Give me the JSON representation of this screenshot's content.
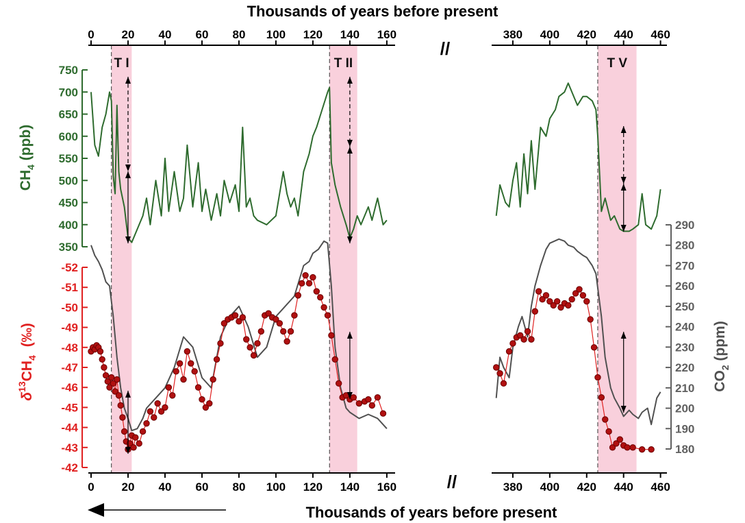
{
  "chart_data": {
    "type": "line",
    "title": "",
    "xlabel": "Thousands of years before present",
    "x_segments": [
      {
        "xlim": [
          0,
          163
        ],
        "ticks": [
          0,
          20,
          40,
          60,
          80,
          100,
          120,
          140,
          160
        ]
      },
      {
        "xlim": [
          370,
          462
        ],
        "ticks": [
          380,
          400,
          420,
          440,
          460
        ]
      }
    ],
    "axis_break": "//",
    "left_axes": [
      {
        "id": "ch4",
        "label": "CH4 (ppb)",
        "ylim": [
          350,
          750
        ],
        "ticks": [
          350,
          400,
          450,
          500,
          550,
          600,
          650,
          700,
          750
        ],
        "color": "#2e6b2e"
      },
      {
        "id": "d13",
        "label": "δ13CH4 (‰)",
        "ylim": [
          -42,
          -52
        ],
        "ticks": [
          -42,
          -43,
          -44,
          -45,
          -46,
          -47,
          -48,
          -49,
          -50,
          -51,
          -52
        ],
        "color": "#e02020",
        "inverted": true
      }
    ],
    "right_axis": {
      "id": "co2",
      "label": "CO2 (ppm)",
      "ylim": [
        180,
        290
      ],
      "ticks": [
        180,
        190,
        200,
        210,
        220,
        230,
        240,
        250,
        260,
        270,
        280,
        290
      ],
      "color": "#606060"
    },
    "terminations": [
      {
        "label": "T I",
        "start": 11,
        "end": 22
      },
      {
        "label": "T II",
        "start": 129,
        "end": 144
      },
      {
        "label": "T V",
        "start": 426,
        "end": 447
      }
    ],
    "series": [
      {
        "axis": "ch4",
        "color": "#2e6b2e",
        "x": [
          0,
          2,
          4,
          6,
          8,
          10,
          11,
          12,
          13,
          14,
          15,
          16,
          18,
          20,
          22,
          25,
          28,
          30,
          32,
          35,
          38,
          40,
          42,
          45,
          48,
          50,
          52,
          55,
          58,
          60,
          62,
          65,
          68,
          70,
          72,
          75,
          78,
          80,
          82,
          84,
          86,
          88,
          90,
          95,
          100,
          104,
          106,
          108,
          110,
          112,
          115,
          118,
          120,
          122,
          125,
          128,
          129,
          130,
          132,
          135,
          138,
          140,
          142,
          144,
          146,
          148,
          150,
          152,
          155,
          158,
          160
        ],
        "values": [
          700,
          580,
          555,
          620,
          650,
          700,
          680,
          510,
          470,
          670,
          520,
          480,
          440,
          370,
          360,
          390,
          420,
          460,
          400,
          500,
          420,
          550,
          430,
          520,
          430,
          460,
          580,
          440,
          540,
          430,
          480,
          410,
          470,
          420,
          500,
          450,
          490,
          430,
          620,
          440,
          460,
          420,
          410,
          400,
          420,
          520,
          470,
          440,
          460,
          420,
          520,
          560,
          600,
          620,
          660,
          700,
          710,
          540,
          490,
          440,
          400,
          370,
          390,
          420,
          400,
          420,
          440,
          410,
          460,
          400,
          410
        ]
      },
      {
        "axis": "ch4",
        "color": "#2e6b2e",
        "x": [
          371,
          373,
          376,
          378,
          380,
          382,
          384,
          386,
          388,
          390,
          392,
          395,
          398,
          400,
          403,
          405,
          408,
          410,
          413,
          415,
          418,
          420,
          423,
          425,
          426,
          428,
          430,
          433,
          435,
          438,
          440,
          443,
          445,
          448,
          450,
          452,
          455,
          458,
          460
        ],
        "values": [
          420,
          490,
          450,
          440,
          500,
          540,
          440,
          560,
          470,
          590,
          480,
          620,
          600,
          640,
          660,
          690,
          700,
          720,
          690,
          670,
          690,
          690,
          680,
          660,
          600,
          430,
          460,
          410,
          420,
          390,
          385,
          385,
          390,
          400,
          470,
          400,
          390,
          420,
          480
        ]
      },
      {
        "axis": "co2",
        "color": "#505050",
        "x": [
          0,
          2,
          4,
          6,
          8,
          10,
          12,
          14,
          16,
          18,
          20,
          22,
          25,
          28,
          30,
          35,
          40,
          45,
          50,
          55,
          60,
          65,
          70,
          75,
          80,
          85,
          90,
          95,
          100,
          105,
          110,
          115,
          118,
          120,
          123,
          126,
          128,
          130,
          132,
          135,
          138,
          140,
          145,
          150,
          155,
          160
        ],
        "values": [
          280,
          275,
          272,
          268,
          262,
          260,
          245,
          225,
          210,
          200,
          195,
          189,
          190,
          195,
          200,
          205,
          210,
          220,
          235,
          230,
          215,
          210,
          235,
          245,
          250,
          240,
          225,
          230,
          245,
          250,
          255,
          270,
          272,
          276,
          278,
          282,
          281,
          260,
          230,
          210,
          200,
          198,
          195,
          197,
          195,
          190
        ]
      },
      {
        "axis": "co2",
        "color": "#505050",
        "x": [
          371,
          373,
          375,
          378,
          380,
          383,
          385,
          388,
          390,
          392,
          395,
          398,
          400,
          405,
          408,
          410,
          413,
          415,
          418,
          420,
          423,
          425,
          428,
          430,
          433,
          435,
          438,
          440,
          443,
          445,
          448,
          450,
          453,
          455,
          458,
          460
        ],
        "values": [
          205,
          225,
          220,
          215,
          230,
          240,
          245,
          235,
          250,
          260,
          270,
          278,
          281,
          283,
          282,
          280,
          279,
          277,
          275,
          274,
          270,
          266,
          245,
          225,
          210,
          205,
          200,
          196,
          199,
          197,
          195,
          198,
          200,
          192,
          205,
          208
        ]
      },
      {
        "axis": "d13",
        "color": "#e02020",
        "markers": true,
        "x": [
          0,
          1,
          2,
          3,
          4,
          5,
          6,
          7,
          8,
          9,
          10,
          11,
          12,
          13,
          14,
          15,
          16,
          17,
          18,
          19,
          20,
          21,
          22,
          23,
          24,
          26,
          28,
          30,
          32,
          34,
          36,
          38,
          40,
          42,
          44,
          46,
          48,
          50,
          52,
          54,
          56,
          58,
          60,
          62,
          64,
          66,
          68,
          70,
          72,
          74,
          76,
          78,
          80,
          82,
          84,
          86,
          88,
          90,
          92,
          94,
          96,
          98,
          100,
          102,
          104,
          106,
          108,
          110,
          112,
          114,
          116,
          118,
          120,
          122,
          124,
          126,
          128,
          130,
          132,
          134,
          136,
          138,
          140,
          142,
          145,
          148,
          150,
          152,
          155,
          158
        ],
        "values": [
          -47.8,
          -48.0,
          -47.9,
          -48.1,
          -48.0,
          -47.8,
          -47.4,
          -47.0,
          -46.6,
          -46.3,
          -46.0,
          -46.5,
          -46.2,
          -45.8,
          -46.4,
          -45.6,
          -45.1,
          -44.5,
          -43.8,
          -43.3,
          -42.9,
          -43.2,
          -43.6,
          -43.0,
          -43.5,
          -43.2,
          -43.8,
          -44.2,
          -44.8,
          -44.5,
          -45.2,
          -44.8,
          -45.0,
          -46.0,
          -45.6,
          -46.8,
          -47.2,
          -46.4,
          -47.8,
          -47.2,
          -46.8,
          -46.0,
          -45.4,
          -45.0,
          -45.2,
          -46.4,
          -47.4,
          -48.2,
          -49.2,
          -49.4,
          -49.5,
          -49.6,
          -49.3,
          -49.5,
          -48.4,
          -48.0,
          -47.6,
          -48.2,
          -48.8,
          -49.6,
          -49.7,
          -49.5,
          -49.4,
          -49.2,
          -48.8,
          -48.3,
          -48.8,
          -49.6,
          -50.6,
          -51.2,
          -51.6,
          -51.2,
          -51.5,
          -50.8,
          -50.5,
          -50.0,
          -49.6,
          -48.6,
          -47.4,
          -46.2,
          -45.5,
          -45.6,
          -45.4,
          -45.5,
          -45.2,
          -45.3,
          -45.4,
          -45.1,
          -45.5,
          -44.7
        ]
      },
      {
        "axis": "d13",
        "color": "#e02020",
        "markers": true,
        "x": [
          371,
          373,
          375,
          378,
          380,
          382,
          384,
          386,
          388,
          390,
          392,
          394,
          396,
          398,
          400,
          402,
          404,
          406,
          408,
          410,
          412,
          414,
          416,
          418,
          420,
          422,
          424,
          426,
          428,
          430,
          432,
          434,
          436,
          438,
          440,
          442,
          445,
          450,
          455
        ],
        "values": [
          -47.0,
          -46.7,
          -46.2,
          -47.8,
          -48.2,
          -48.5,
          -48.6,
          -48.4,
          -48.8,
          -48.4,
          -49.8,
          -50.8,
          -50.4,
          -50.6,
          -50.3,
          -50.1,
          -50.3,
          -50.0,
          -50.2,
          -50.1,
          -50.4,
          -50.7,
          -50.9,
          -50.6,
          -50.3,
          -49.4,
          -48.0,
          -46.5,
          -45.5,
          -44.4,
          -43.8,
          -43.0,
          -43.2,
          -43.4,
          -43.1,
          -43.0,
          -43.0,
          -42.9,
          -42.9
        ]
      }
    ]
  },
  "ui": {
    "title_top": "Thousands of years before present",
    "title_bottom": "Thousands of years before present",
    "break_symbol": "//",
    "ch4_label_main": "CH",
    "ch4_label_sub": "4",
    "ch4_label_unit": " (ppb)",
    "d13_label_delta": "δ",
    "d13_label_sup": "13",
    "d13_label_main": "CH",
    "d13_label_sub": "4",
    "d13_label_unit": "(‰)",
    "co2_label_main": "CO",
    "co2_label_sub": "2",
    "co2_label_unit": " (ppm)"
  }
}
